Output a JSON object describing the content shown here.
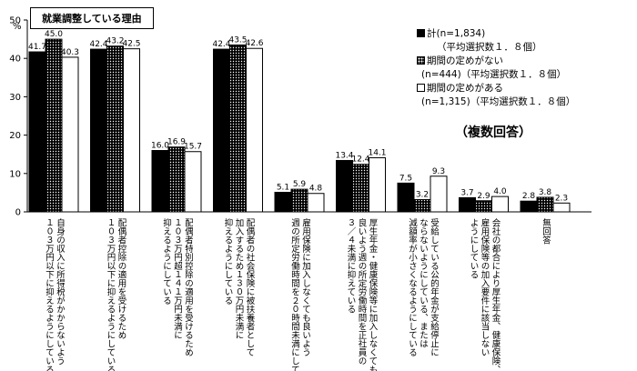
{
  "title_box": "就業調整している理由",
  "note": "（複数回答）",
  "chart_data": {
    "type": "bar",
    "y_unit": "%",
    "ylim": [
      0,
      50
    ],
    "yticks": [
      0,
      10,
      20,
      30,
      40,
      50
    ],
    "grid": false,
    "legend_position": "top-right",
    "categories": [
      "自身の収入に所得税がかからないよう\n１０３万円以下に抑えるようにしている",
      "配偶者控除の適用を受けるため\n１０３万円以下に抑えるようにしている",
      "配偶者特別控除の適用を受けるため\n１０３万円超１４１万円未満に\n抑えるようにしている",
      "配偶者の社会保険に被扶養者として\n加入するため１３０万円未満に\n抑えるようにしている",
      "雇用保険に加入しなくても良いよう\n週の所定労働時間を２０時間未満にしてい",
      "厚生年金・健康保険等に加入しなくても\n良いよう週の所定労働時間を正社員の\n３／４未満に抑えている",
      "受給している公的年金が支給停止に\nならないようにしている、または\n減額率が小さくなるようにしている",
      "会社の都合により厚生年金、健康保険、\n雇用保険等の加入要件に該当しない\nようにしている",
      "無回答"
    ],
    "series": [
      {
        "name": "計(n=1,834)",
        "sub": "（平均選択数１．８個）",
        "values": [
          41.7,
          42.4,
          16.0,
          42.4,
          5.1,
          13.4,
          7.5,
          3.7,
          2.8
        ]
      },
      {
        "name": "期間の定めがない",
        "sub": "(n=444)（平均選択数１．８個）",
        "values": [
          45.0,
          43.2,
          16.9,
          43.5,
          5.9,
          12.4,
          3.2,
          2.9,
          3.8
        ]
      },
      {
        "name": "期間の定めがある",
        "sub": "(n=1,315)（平均選択数１．８個）",
        "values": [
          40.3,
          42.5,
          15.7,
          42.6,
          4.8,
          14.1,
          9.3,
          4.0,
          2.3
        ]
      }
    ]
  }
}
